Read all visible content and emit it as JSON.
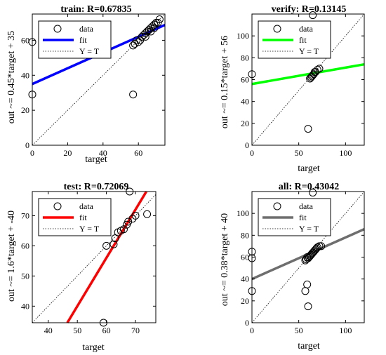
{
  "chart_data": [
    {
      "type": "scatter",
      "title": "train: R=0.67835",
      "xlabel": "target",
      "ylabel": "out ~= 0.45*target + 35",
      "xlim": [
        0,
        75
      ],
      "ylim": [
        0,
        75
      ],
      "xticks": [
        0,
        20,
        40,
        60
      ],
      "yticks": [
        0,
        20,
        40,
        60
      ],
      "fit": {
        "slope": 0.45,
        "intercept": 35,
        "color": "#0000ff"
      },
      "legend": {
        "data": "data",
        "fit": "fit",
        "ident": "Y = T",
        "position": "top-left"
      },
      "points": [
        [
          0,
          59
        ],
        [
          0,
          29
        ],
        [
          57,
          29
        ],
        [
          57,
          57
        ],
        [
          58,
          58
        ],
        [
          59,
          60
        ],
        [
          60,
          59
        ],
        [
          61,
          60
        ],
        [
          62,
          62
        ],
        [
          63,
          63
        ],
        [
          64,
          64
        ],
        [
          64,
          62
        ],
        [
          65,
          65
        ],
        [
          66,
          66
        ],
        [
          67,
          67
        ],
        [
          67,
          65
        ],
        [
          68,
          68
        ],
        [
          69,
          69
        ],
        [
          69,
          67
        ],
        [
          70,
          70
        ],
        [
          71,
          70
        ],
        [
          72,
          72
        ]
      ]
    },
    {
      "type": "scatter",
      "title": "verify: R=0.13145",
      "xlabel": "target",
      "ylabel": "out ~= 0.15*target + 56",
      "xlim": [
        0,
        120
      ],
      "ylim": [
        0,
        120
      ],
      "xticks": [
        0,
        50,
        100
      ],
      "yticks": [
        0,
        20,
        40,
        60,
        80,
        100
      ],
      "fit": {
        "slope": 0.15,
        "intercept": 56,
        "color": "#00ff00"
      },
      "legend": {
        "data": "data",
        "fit": "fit",
        "ident": "Y = T",
        "position": "top-left"
      },
      "points": [
        [
          0,
          65
        ],
        [
          60,
          15
        ],
        [
          65,
          119
        ],
        [
          62,
          61
        ],
        [
          63,
          62
        ],
        [
          64,
          63
        ],
        [
          65,
          64
        ],
        [
          66,
          65
        ],
        [
          67,
          67
        ],
        [
          68,
          67
        ],
        [
          70,
          69
        ],
        [
          72,
          70
        ]
      ]
    },
    {
      "type": "scatter",
      "title": "test: R=0.72069",
      "xlabel": "target",
      "ylabel": "out ~= 1.6*target + -40",
      "xlim": [
        34.5,
        77
      ],
      "ylim": [
        34.5,
        78
      ],
      "xticks": [
        40,
        50,
        60,
        70
      ],
      "yticks": [
        40,
        50,
        60,
        70
      ],
      "fit": {
        "slope": 1.6,
        "intercept": -40,
        "color": "#ff0000"
      },
      "legend": {
        "data": "data",
        "fit": "fit",
        "ident": "Y = T",
        "position": "top-left"
      },
      "points": [
        [
          59,
          34.5
        ],
        [
          60,
          60
        ],
        [
          62.5,
          60.5
        ],
        [
          63,
          62.5
        ],
        [
          64,
          64.5
        ],
        [
          65,
          65
        ],
        [
          66,
          65.5
        ],
        [
          67,
          67
        ],
        [
          67.5,
          68
        ],
        [
          68,
          78
        ],
        [
          69,
          69
        ],
        [
          70,
          70
        ],
        [
          74,
          70.5
        ]
      ]
    },
    {
      "type": "scatter",
      "title": "all: R=0.43042",
      "xlabel": "target",
      "ylabel": "out ~= 0.38*target + 40",
      "xlim": [
        0,
        120
      ],
      "ylim": [
        0,
        120
      ],
      "xticks": [
        0,
        50,
        100
      ],
      "yticks": [
        0,
        20,
        40,
        60,
        80,
        100
      ],
      "fit": {
        "slope": 0.38,
        "intercept": 40,
        "color": "#6e6e6e"
      },
      "legend": {
        "data": "data",
        "fit": "fit",
        "ident": "Y = T",
        "position": "top-left"
      },
      "points": [
        [
          0,
          65
        ],
        [
          0,
          59
        ],
        [
          0,
          29
        ],
        [
          57,
          29
        ],
        [
          59,
          35
        ],
        [
          60,
          15
        ],
        [
          65,
          119
        ],
        [
          57,
          57
        ],
        [
          58,
          58
        ],
        [
          59,
          60
        ],
        [
          60,
          59
        ],
        [
          61,
          60
        ],
        [
          62,
          61
        ],
        [
          63,
          62
        ],
        [
          64,
          63
        ],
        [
          65,
          64
        ],
        [
          66,
          65
        ],
        [
          67,
          66
        ],
        [
          68,
          67
        ],
        [
          69,
          68
        ],
        [
          70,
          69
        ],
        [
          72,
          70
        ],
        [
          74,
          70
        ]
      ]
    }
  ]
}
